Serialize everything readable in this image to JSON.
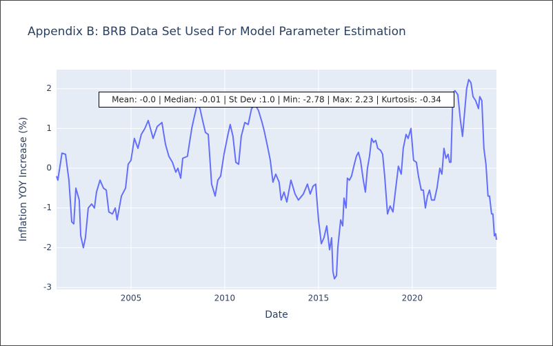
{
  "chart_data": {
    "type": "line",
    "title": "Appendix B: BRB Data Set Used For Model Parameter Estimation",
    "x_label": "Date",
    "y_label": "Inflation YOY Increase (%)",
    "annotation": "Mean: -0.0 | Median: -0.01 | St Dev :1.0 | Min: -2.78 | Max: 2.23 | Kurtosis: -0.34",
    "x": [
      2001.03,
      2001.1,
      2001.32,
      2001.51,
      2001.69,
      2001.84,
      2001.95,
      2002.06,
      2002.24,
      2002.32,
      2002.46,
      2002.57,
      2002.72,
      2002.9,
      2003.05,
      2003.16,
      2003.35,
      2003.53,
      2003.68,
      2003.82,
      2004.01,
      2004.16,
      2004.26,
      2004.49,
      2004.71,
      2004.85,
      2005.0,
      2005.18,
      2005.37,
      2005.55,
      2005.74,
      2005.92,
      2006.18,
      2006.4,
      2006.65,
      2006.84,
      2007.02,
      2007.21,
      2007.39,
      2007.5,
      2007.65,
      2007.76,
      2008.01,
      2008.24,
      2008.38,
      2008.53,
      2008.68,
      2008.82,
      2008.97,
      2009.12,
      2009.3,
      2009.49,
      2009.63,
      2009.78,
      2009.96,
      2010.15,
      2010.29,
      2010.44,
      2010.59,
      2010.74,
      2010.88,
      2011.07,
      2011.25,
      2011.43,
      2011.62,
      2011.8,
      2011.99,
      2012.1,
      2012.28,
      2012.43,
      2012.57,
      2012.72,
      2012.9,
      2013.01,
      2013.16,
      2013.31,
      2013.53,
      2013.75,
      2013.93,
      2014.19,
      2014.41,
      2014.56,
      2014.71,
      2014.85,
      2015.0,
      2015.15,
      2015.29,
      2015.44,
      2015.59,
      2015.7,
      2015.77,
      2015.85,
      2015.96,
      2016.03,
      2016.18,
      2016.29,
      2016.36,
      2016.47,
      2016.54,
      2016.65,
      2016.76,
      2016.91,
      2017.02,
      2017.13,
      2017.24,
      2017.39,
      2017.5,
      2017.61,
      2017.72,
      2017.83,
      2017.94,
      2018.05,
      2018.16,
      2018.31,
      2018.42,
      2018.53,
      2018.68,
      2018.82,
      2018.97,
      2019.12,
      2019.26,
      2019.41,
      2019.52,
      2019.67,
      2019.78,
      2019.93,
      2020.07,
      2020.22,
      2020.33,
      2020.48,
      2020.59,
      2020.7,
      2020.81,
      2020.92,
      2021.03,
      2021.18,
      2021.32,
      2021.47,
      2021.58,
      2021.69,
      2021.8,
      2021.91,
      2021.99,
      2022.06,
      2022.17,
      2022.28,
      2022.43,
      2022.57,
      2022.68,
      2022.79,
      2022.9,
      2023.01,
      2023.13,
      2023.24,
      2023.38,
      2023.53,
      2023.6,
      2023.71,
      2023.82,
      2023.93,
      2024.04,
      2024.12,
      2024.23,
      2024.3,
      2024.38,
      2024.45,
      2024.49
    ],
    "series": [
      {
        "name": "Inflation",
        "color": "#636efa",
        "values": [
          -0.2,
          -0.3,
          0.38,
          0.35,
          -0.3,
          -1.35,
          -1.4,
          -0.5,
          -0.8,
          -1.7,
          -2.0,
          -1.75,
          -1.0,
          -0.9,
          -1.0,
          -0.6,
          -0.3,
          -0.5,
          -0.55,
          -1.1,
          -1.15,
          -1.0,
          -1.3,
          -0.7,
          -0.5,
          0.1,
          0.2,
          0.75,
          0.5,
          0.85,
          1.0,
          1.2,
          0.75,
          1.05,
          1.15,
          0.6,
          0.3,
          0.15,
          -0.1,
          0.0,
          -0.25,
          0.25,
          0.3,
          1.0,
          1.3,
          1.6,
          1.5,
          1.2,
          0.9,
          0.85,
          -0.4,
          -0.7,
          -0.3,
          -0.2,
          0.35,
          0.8,
          1.1,
          0.8,
          0.15,
          0.1,
          0.8,
          1.15,
          1.1,
          1.5,
          1.6,
          1.45,
          1.15,
          0.95,
          0.55,
          0.2,
          -0.35,
          -0.15,
          -0.35,
          -0.8,
          -0.6,
          -0.85,
          -0.3,
          -0.65,
          -0.8,
          -0.65,
          -0.4,
          -0.65,
          -0.45,
          -0.4,
          -1.3,
          -1.9,
          -1.75,
          -1.45,
          -2.05,
          -1.75,
          -2.6,
          -2.78,
          -2.7,
          -2.0,
          -1.3,
          -1.45,
          -0.75,
          -1.0,
          -0.25,
          -0.3,
          -0.2,
          0.1,
          0.3,
          0.4,
          0.2,
          -0.3,
          -0.6,
          0.0,
          0.3,
          0.75,
          0.65,
          0.7,
          0.5,
          0.45,
          0.35,
          -0.2,
          -1.15,
          -0.95,
          -1.1,
          -0.5,
          0.05,
          -0.15,
          0.5,
          0.85,
          0.75,
          1.0,
          0.2,
          0.15,
          -0.2,
          -0.55,
          -0.55,
          -1.0,
          -0.7,
          -0.55,
          -0.8,
          -0.8,
          -0.5,
          0.0,
          -0.15,
          0.5,
          0.25,
          0.35,
          0.15,
          0.15,
          1.9,
          1.95,
          1.85,
          1.2,
          0.8,
          1.4,
          2.0,
          2.23,
          2.15,
          1.8,
          1.7,
          1.5,
          1.8,
          1.7,
          0.5,
          0.1,
          -0.7,
          -0.7,
          -1.15,
          -1.15,
          -1.7,
          -1.65,
          -1.8
        ]
      }
    ],
    "xlim": [
      2001.03,
      2024.49
    ],
    "ylim": [
      -3.05,
      2.48
    ],
    "xticks": [
      2005,
      2010,
      2015,
      2020
    ],
    "yticks": [
      -3,
      -2,
      -1,
      0,
      1,
      2
    ],
    "grid": true
  }
}
